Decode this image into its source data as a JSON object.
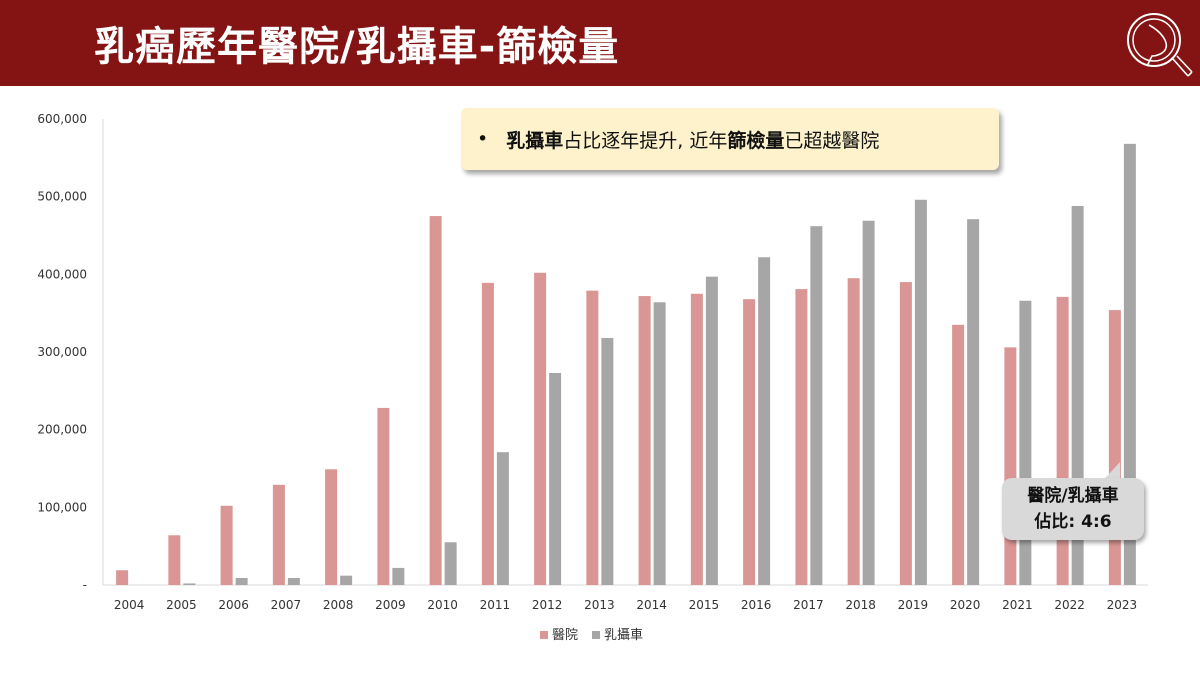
{
  "title": "乳癌歷年醫院/乳攝車-篩檢量",
  "note": {
    "bullet": "•",
    "segments": [
      {
        "text": "乳攝車",
        "bold": true
      },
      {
        "text": "占比逐年提升, 近年",
        "bold": false
      },
      {
        "text": "篩檢量",
        "bold": true
      },
      {
        "text": "已超越醫院",
        "bold": false
      }
    ]
  },
  "callout": {
    "line1": "醫院/乳攝車",
    "line2": "佔比: 4:6"
  },
  "colors": {
    "header": "#841414",
    "hospital": "#d99694",
    "car": "#a6a6a6"
  },
  "chart_data": {
    "type": "bar",
    "title": "乳癌歷年醫院/乳攝車-篩檢量",
    "categories": [
      "2004",
      "2005",
      "2006",
      "2007",
      "2008",
      "2009",
      "2010",
      "2011",
      "2012",
      "2013",
      "2014",
      "2015",
      "2016",
      "2017",
      "2018",
      "2019",
      "2020",
      "2021",
      "2022",
      "2023"
    ],
    "series": [
      {
        "name": "醫院",
        "values": [
          19000,
          64000,
          102000,
          129000,
          149000,
          228000,
          475000,
          389000,
          402000,
          379000,
          372000,
          375000,
          368000,
          381000,
          395000,
          390000,
          335000,
          306000,
          371000,
          354000
        ]
      },
      {
        "name": "乳攝車",
        "values": [
          0,
          2000,
          9000,
          9000,
          12000,
          22000,
          55000,
          171000,
          273000,
          318000,
          364000,
          397000,
          422000,
          462000,
          469000,
          496000,
          471000,
          366000,
          488000,
          568000
        ]
      }
    ],
    "ylim": [
      0,
      600000
    ],
    "yticks": [
      "-",
      "100,000",
      "200,000",
      "300,000",
      "400,000",
      "500,000",
      "600,000"
    ],
    "legend": "bottom",
    "grid": false
  }
}
